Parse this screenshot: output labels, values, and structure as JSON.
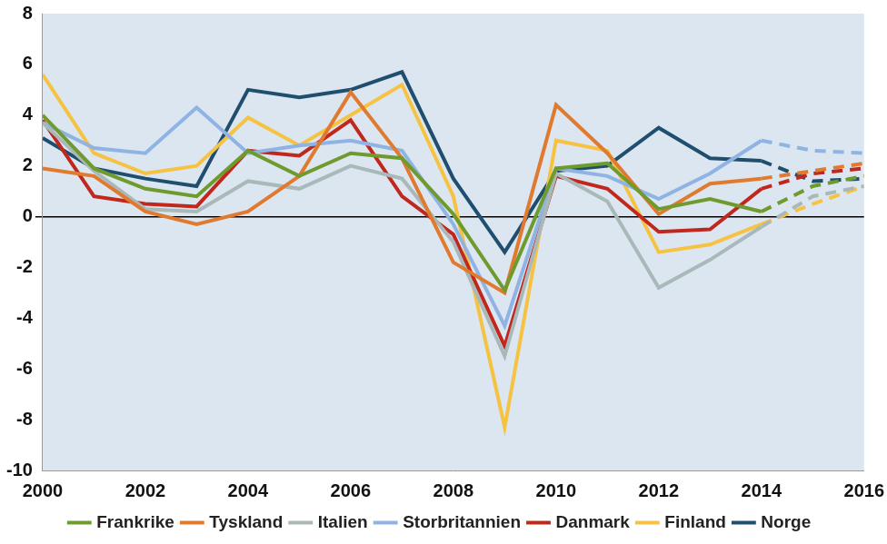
{
  "chart_data": {
    "type": "line",
    "x": [
      2000,
      2001,
      2002,
      2003,
      2004,
      2005,
      2006,
      2007,
      2008,
      2009,
      2010,
      2011,
      2012,
      2013,
      2014,
      2015,
      2016
    ],
    "xlim": [
      2000,
      2016
    ],
    "xticks": [
      2000,
      2002,
      2004,
      2006,
      2008,
      2010,
      2012,
      2014,
      2016
    ],
    "ylim": [
      -10,
      8
    ],
    "yticks": [
      -10,
      -8,
      -6,
      -4,
      -2,
      0,
      2,
      4,
      6,
      8
    ],
    "grid": false,
    "legend": "bottom",
    "series": [
      {
        "name": "Frankrike",
        "color": "#6f9a2e",
        "line_style": "solid",
        "values": [
          4.0,
          1.9,
          1.1,
          0.8,
          2.6,
          1.6,
          2.5,
          2.3,
          0.1,
          -2.9,
          1.9,
          2.1,
          0.3,
          0.7,
          0.2,
          null,
          null
        ]
      },
      {
        "name": "Tyskland",
        "color": "#e07a2f",
        "line_style": "solid",
        "values": [
          1.9,
          1.6,
          0.2,
          -0.3,
          0.2,
          1.6,
          4.9,
          2.3,
          -1.8,
          -3.0,
          4.4,
          2.5,
          0.1,
          1.3,
          1.5,
          null,
          null
        ]
      },
      {
        "name": "Italien",
        "color": "#a9b9b9",
        "line_style": "solid",
        "values": [
          3.7,
          1.8,
          0.3,
          0.2,
          1.4,
          1.1,
          2.0,
          1.5,
          -1.0,
          -5.5,
          1.7,
          0.6,
          -2.8,
          -1.7,
          -0.4,
          null,
          null
        ]
      },
      {
        "name": "Storbritannien",
        "color": "#8fb4e3",
        "line_style": "solid",
        "values": [
          3.7,
          2.7,
          2.5,
          4.3,
          2.5,
          2.8,
          3.0,
          2.6,
          -0.3,
          -4.3,
          1.9,
          1.6,
          0.7,
          1.7,
          3.0,
          null,
          null
        ]
      },
      {
        "name": "Danmark",
        "color": "#c0281e",
        "line_style": "solid",
        "values": [
          3.8,
          0.8,
          0.5,
          0.4,
          2.6,
          2.4,
          3.8,
          0.8,
          -0.7,
          -5.1,
          1.6,
          1.1,
          -0.6,
          -0.5,
          1.1,
          null,
          null
        ]
      },
      {
        "name": "Finland",
        "color": "#f5c242",
        "line_style": "solid",
        "values": [
          5.6,
          2.5,
          1.7,
          2.0,
          3.9,
          2.8,
          4.0,
          5.2,
          0.8,
          -8.3,
          3.0,
          2.6,
          -1.4,
          -1.1,
          -0.3,
          null,
          null
        ]
      },
      {
        "name": "Norge",
        "color": "#1f4e6e",
        "line_style": "solid",
        "values": [
          3.1,
          1.9,
          1.5,
          1.2,
          5.0,
          4.7,
          5.0,
          5.7,
          1.5,
          -1.4,
          1.8,
          2.0,
          3.5,
          2.3,
          2.2,
          null,
          null
        ]
      },
      {
        "name": "Frankrike",
        "color": "#6f9a2e",
        "line_style": "dashed",
        "values": [
          null,
          null,
          null,
          null,
          null,
          null,
          null,
          null,
          null,
          null,
          null,
          null,
          null,
          null,
          0.2,
          1.2,
          1.6
        ]
      },
      {
        "name": "Tyskland",
        "color": "#e07a2f",
        "line_style": "dashed",
        "values": [
          null,
          null,
          null,
          null,
          null,
          null,
          null,
          null,
          null,
          null,
          null,
          null,
          null,
          null,
          1.5,
          1.8,
          2.1
        ]
      },
      {
        "name": "Italien",
        "color": "#a9b9b9",
        "line_style": "dashed",
        "values": [
          null,
          null,
          null,
          null,
          null,
          null,
          null,
          null,
          null,
          null,
          null,
          null,
          null,
          null,
          -0.4,
          0.8,
          1.2
        ]
      },
      {
        "name": "Storbritannien",
        "color": "#8fb4e3",
        "line_style": "dashed",
        "values": [
          null,
          null,
          null,
          null,
          null,
          null,
          null,
          null,
          null,
          null,
          null,
          null,
          null,
          null,
          3.0,
          2.6,
          2.5
        ]
      },
      {
        "name": "Danmark",
        "color": "#c0281e",
        "line_style": "dashed",
        "values": [
          null,
          null,
          null,
          null,
          null,
          null,
          null,
          null,
          null,
          null,
          null,
          null,
          null,
          null,
          1.1,
          1.7,
          1.9
        ]
      },
      {
        "name": "Finland",
        "color": "#f5c242",
        "line_style": "dashed",
        "values": [
          null,
          null,
          null,
          null,
          null,
          null,
          null,
          null,
          null,
          null,
          null,
          null,
          null,
          null,
          -0.3,
          0.5,
          1.2
        ]
      },
      {
        "name": "Norge",
        "color": "#1f4e6e",
        "line_style": "dashed",
        "values": [
          null,
          null,
          null,
          null,
          null,
          null,
          null,
          null,
          null,
          null,
          null,
          null,
          null,
          null,
          2.2,
          1.4,
          1.5
        ]
      }
    ]
  }
}
